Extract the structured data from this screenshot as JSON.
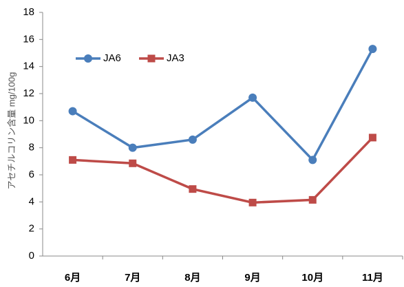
{
  "chart_data": {
    "type": "line",
    "y_label": "アセチルコリン含量 mg/100g",
    "categories": [
      "6月",
      "7月",
      "8月",
      "9月",
      "10月",
      "11月"
    ],
    "series": [
      {
        "name": "JA6",
        "color": "#4a7ebb",
        "marker": "circle",
        "values": [
          10.7,
          8.0,
          8.6,
          11.7,
          7.1,
          15.3
        ]
      },
      {
        "name": "JA3",
        "color": "#be4b48",
        "marker": "square",
        "values": [
          7.1,
          6.85,
          4.95,
          3.95,
          4.15,
          8.75
        ]
      }
    ],
    "ylim": [
      0,
      18
    ],
    "yticks": [
      0,
      2,
      4,
      6,
      8,
      10,
      12,
      14,
      16,
      18
    ],
    "grid": false
  }
}
